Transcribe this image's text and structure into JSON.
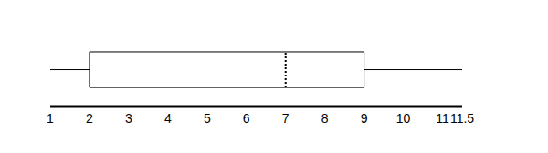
{
  "chart_data": {
    "type": "box",
    "xlim": [
      1,
      11.5
    ],
    "xticks": [
      1,
      2,
      3,
      4,
      5,
      6,
      7,
      8,
      9,
      10,
      11,
      11.5
    ],
    "min": 1,
    "q1": 2,
    "median": 7,
    "q3": 9,
    "max": 11.5,
    "tick_labels": "x"
  }
}
